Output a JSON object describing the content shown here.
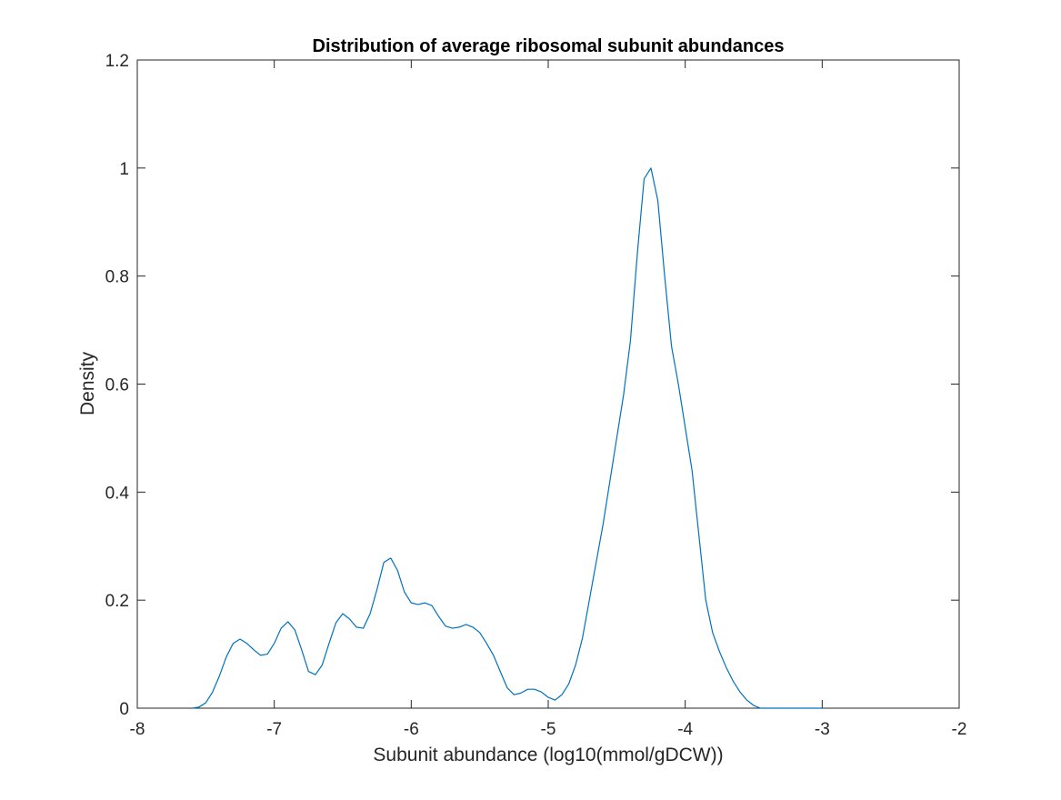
{
  "chart_data": {
    "type": "line",
    "title": "Distribution of average ribosomal subunit abundances",
    "xlabel": "Subunit abundance (log10(mmol/gDCW))",
    "ylabel": "Density",
    "xlim": [
      -8,
      -2
    ],
    "ylim": [
      0,
      1.2
    ],
    "xticks": [
      -8,
      -7,
      -6,
      -5,
      -4,
      -3,
      -2
    ],
    "xtick_labels": [
      "-8",
      "-7",
      "-6",
      "-5",
      "-4",
      "-3",
      "-2"
    ],
    "yticks": [
      0,
      0.2,
      0.4,
      0.6,
      0.8,
      1,
      1.2
    ],
    "ytick_labels": [
      "0",
      "0.2",
      "0.4",
      "0.6",
      "0.8",
      "1",
      "1.2"
    ],
    "grid": false,
    "box": true,
    "series": [
      {
        "color": "#0072BD",
        "x": [
          -7.6,
          -7.55,
          -7.5,
          -7.45,
          -7.4,
          -7.35,
          -7.3,
          -7.25,
          -7.2,
          -7.15,
          -7.1,
          -7.05,
          -7.0,
          -6.95,
          -6.9,
          -6.85,
          -6.8,
          -6.75,
          -6.7,
          -6.65,
          -6.6,
          -6.55,
          -6.5,
          -6.45,
          -6.4,
          -6.35,
          -6.3,
          -6.25,
          -6.2,
          -6.15,
          -6.1,
          -6.05,
          -6.0,
          -5.95,
          -5.9,
          -5.85,
          -5.8,
          -5.75,
          -5.7,
          -5.65,
          -5.6,
          -5.55,
          -5.5,
          -5.45,
          -5.4,
          -5.35,
          -5.3,
          -5.25,
          -5.2,
          -5.15,
          -5.1,
          -5.05,
          -5.0,
          -4.95,
          -4.9,
          -4.85,
          -4.8,
          -4.75,
          -4.7,
          -4.65,
          -4.6,
          -4.55,
          -4.5,
          -4.45,
          -4.4,
          -4.35,
          -4.3,
          -4.25,
          -4.2,
          -4.15,
          -4.1,
          -4.05,
          -4.0,
          -3.95,
          -3.9,
          -3.85,
          -3.8,
          -3.75,
          -3.7,
          -3.65,
          -3.6,
          -3.55,
          -3.5,
          -3.45,
          -3.4,
          -3.35,
          -3.3,
          -3.25,
          -3.2,
          -3.15,
          -3.1,
          -3.05,
          -3.0
        ],
        "values": [
          0.0,
          0.002,
          0.01,
          0.03,
          0.06,
          0.095,
          0.12,
          0.128,
          0.12,
          0.108,
          0.098,
          0.1,
          0.12,
          0.148,
          0.16,
          0.145,
          0.108,
          0.068,
          0.062,
          0.08,
          0.12,
          0.158,
          0.175,
          0.165,
          0.15,
          0.148,
          0.175,
          0.22,
          0.27,
          0.278,
          0.255,
          0.215,
          0.195,
          0.192,
          0.195,
          0.19,
          0.17,
          0.152,
          0.148,
          0.15,
          0.155,
          0.15,
          0.14,
          0.12,
          0.098,
          0.068,
          0.038,
          0.025,
          0.028,
          0.035,
          0.035,
          0.03,
          0.02,
          0.015,
          0.025,
          0.045,
          0.08,
          0.13,
          0.2,
          0.27,
          0.34,
          0.42,
          0.5,
          0.58,
          0.68,
          0.84,
          0.98,
          1.0,
          0.94,
          0.8,
          0.67,
          0.6,
          0.52,
          0.44,
          0.32,
          0.2,
          0.14,
          0.105,
          0.075,
          0.05,
          0.03,
          0.015,
          0.005,
          0.0,
          0.0,
          0.0,
          0.0,
          0.0,
          0.0,
          0.0,
          0.0,
          0.0,
          0.0
        ]
      }
    ]
  }
}
